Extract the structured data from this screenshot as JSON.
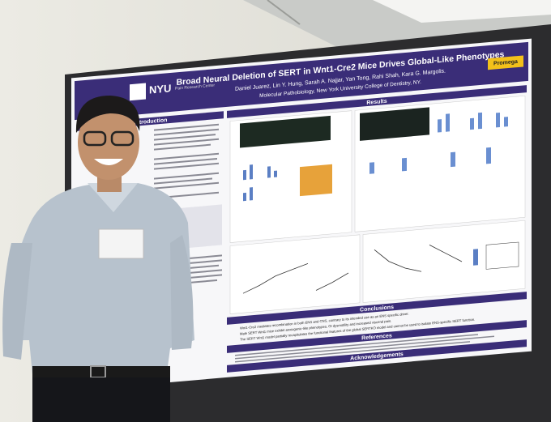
{
  "poster": {
    "logo": "NYU",
    "center": "Pain Research Center",
    "sponsor": "Promega",
    "title": "Broad Neural Deletion of SERT in Wnt1-Cre2 Mice Drives Global-Like Phenotypes",
    "authors": "Daniel Juarez, Lin Y. Hung, Sarah A. Najjar, Yan Tong, Rahi Shah, Kara G. Margolis.",
    "affiliation": "Molecular Pathobiology, New York University College of Dentistry, NY.",
    "sections": {
      "introduction": "Introduction",
      "results": "Results",
      "conclusions": "Conclusions",
      "references": "References",
      "acknowledgements": "Acknowledgements"
    },
    "conclusion_points": [
      "Wnt1-Cre2 mediates recombination in both ENS and CNS, contrary to its intended use as an ENS specific driver.",
      "Male SERT Wnt1 mice exhibit anxiogenic-like phenotypes, GI dysmotility and increased visceral pain.",
      "The SERT Wnt1 model partially recapitulates the functional features of the global SERTKO model and cannot be used to isolate ENS-specific SERT function."
    ]
  }
}
